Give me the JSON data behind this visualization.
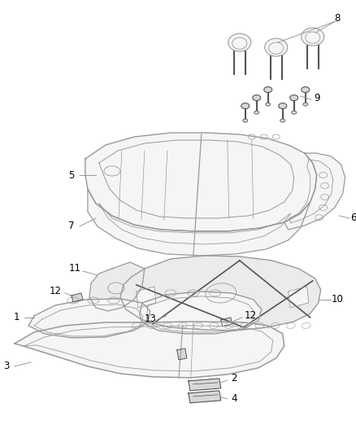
{
  "background_color": "#ffffff",
  "line_color": "#999999",
  "dark_line_color": "#555555",
  "fill_light": "#f5f5f5",
  "fill_medium": "#ebebeb",
  "fill_dark": "#d8d8d8",
  "label_color": "#000000",
  "label_fontsize": 8.5,
  "figsize": [
    4.38,
    5.33
  ],
  "dpi": 100
}
